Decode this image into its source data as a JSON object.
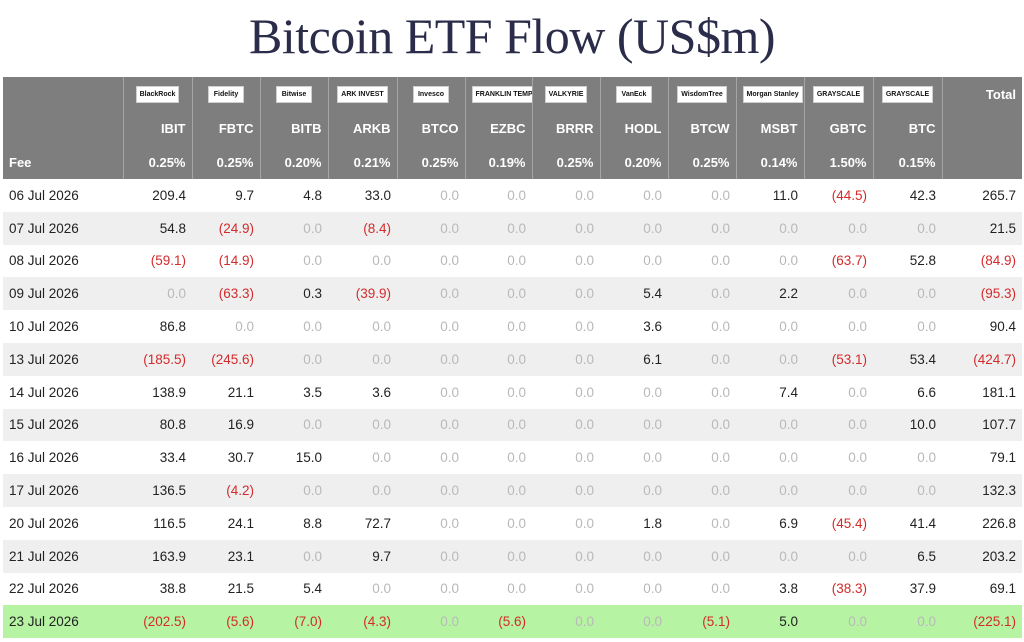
{
  "title": "Bitcoin ETF Flow (US$m)",
  "colors": {
    "header_bg": "#7e7e7e",
    "negative": "#d32b2b",
    "zero": "#b9b9b9",
    "highlight": "#b6f3a2"
  },
  "chart_data": {
    "type": "table",
    "title": "Bitcoin ETF Flow (US$m)",
    "issuers": [
      "BlackRock",
      "Fidelity",
      "Bitwise",
      "ARK INVEST",
      "Invesco",
      "FRANKLIN TEMPLETON",
      "VALKYRIE",
      "VanEck",
      "WisdomTree",
      "Morgan Stanley",
      "GRAYSCALE",
      "GRAYSCALE"
    ],
    "tickers": [
      "IBIT",
      "FBTC",
      "BITB",
      "ARKB",
      "BTCO",
      "EZBC",
      "BRRR",
      "HODL",
      "BTCW",
      "MSBT",
      "GBTC",
      "BTC"
    ],
    "total_label": "Total",
    "fee_label": "Fee",
    "fees": [
      "0.25%",
      "0.25%",
      "0.20%",
      "0.21%",
      "0.25%",
      "0.19%",
      "0.25%",
      "0.20%",
      "0.25%",
      "0.14%",
      "1.50%",
      "0.15%"
    ],
    "rows": [
      {
        "date": "06 Jul 2026",
        "values": [
          "209.4",
          "9.7",
          "4.8",
          "33.0",
          "0.0",
          "0.0",
          "0.0",
          "0.0",
          "0.0",
          "11.0",
          "(44.5)",
          "42.3"
        ],
        "total": "265.7"
      },
      {
        "date": "07 Jul 2026",
        "values": [
          "54.8",
          "(24.9)",
          "0.0",
          "(8.4)",
          "0.0",
          "0.0",
          "0.0",
          "0.0",
          "0.0",
          "0.0",
          "0.0",
          "0.0"
        ],
        "total": "21.5"
      },
      {
        "date": "08 Jul 2026",
        "values": [
          "(59.1)",
          "(14.9)",
          "0.0",
          "0.0",
          "0.0",
          "0.0",
          "0.0",
          "0.0",
          "0.0",
          "0.0",
          "(63.7)",
          "52.8"
        ],
        "total": "(84.9)"
      },
      {
        "date": "09 Jul 2026",
        "values": [
          "0.0",
          "(63.3)",
          "0.3",
          "(39.9)",
          "0.0",
          "0.0",
          "0.0",
          "5.4",
          "0.0",
          "2.2",
          "0.0",
          "0.0"
        ],
        "total": "(95.3)"
      },
      {
        "date": "10 Jul 2026",
        "values": [
          "86.8",
          "0.0",
          "0.0",
          "0.0",
          "0.0",
          "0.0",
          "0.0",
          "3.6",
          "0.0",
          "0.0",
          "0.0",
          "0.0"
        ],
        "total": "90.4"
      },
      {
        "date": "13 Jul 2026",
        "values": [
          "(185.5)",
          "(245.6)",
          "0.0",
          "0.0",
          "0.0",
          "0.0",
          "0.0",
          "6.1",
          "0.0",
          "0.0",
          "(53.1)",
          "53.4"
        ],
        "total": "(424.7)"
      },
      {
        "date": "14 Jul 2026",
        "values": [
          "138.9",
          "21.1",
          "3.5",
          "3.6",
          "0.0",
          "0.0",
          "0.0",
          "0.0",
          "0.0",
          "7.4",
          "0.0",
          "6.6"
        ],
        "total": "181.1"
      },
      {
        "date": "15 Jul 2026",
        "values": [
          "80.8",
          "16.9",
          "0.0",
          "0.0",
          "0.0",
          "0.0",
          "0.0",
          "0.0",
          "0.0",
          "0.0",
          "0.0",
          "10.0"
        ],
        "total": "107.7"
      },
      {
        "date": "16 Jul 2026",
        "values": [
          "33.4",
          "30.7",
          "15.0",
          "0.0",
          "0.0",
          "0.0",
          "0.0",
          "0.0",
          "0.0",
          "0.0",
          "0.0",
          "0.0"
        ],
        "total": "79.1"
      },
      {
        "date": "17 Jul 2026",
        "values": [
          "136.5",
          "(4.2)",
          "0.0",
          "0.0",
          "0.0",
          "0.0",
          "0.0",
          "0.0",
          "0.0",
          "0.0",
          "0.0",
          "0.0"
        ],
        "total": "132.3"
      },
      {
        "date": "20 Jul 2026",
        "values": [
          "116.5",
          "24.1",
          "8.8",
          "72.7",
          "0.0",
          "0.0",
          "0.0",
          "1.8",
          "0.0",
          "6.9",
          "(45.4)",
          "41.4"
        ],
        "total": "226.8"
      },
      {
        "date": "21 Jul 2026",
        "values": [
          "163.9",
          "23.1",
          "0.0",
          "9.7",
          "0.0",
          "0.0",
          "0.0",
          "0.0",
          "0.0",
          "0.0",
          "0.0",
          "6.5"
        ],
        "total": "203.2"
      },
      {
        "date": "22 Jul 2026",
        "values": [
          "38.8",
          "21.5",
          "5.4",
          "0.0",
          "0.0",
          "0.0",
          "0.0",
          "0.0",
          "0.0",
          "3.8",
          "(38.3)",
          "37.9"
        ],
        "total": "69.1"
      },
      {
        "date": "23 Jul 2026",
        "values": [
          "(202.5)",
          "(5.6)",
          "(7.0)",
          "(4.3)",
          "0.0",
          "(5.6)",
          "0.0",
          "0.0",
          "(5.1)",
          "5.0",
          "0.0",
          "0.0"
        ],
        "total": "(225.1)",
        "highlight": true
      }
    ]
  }
}
